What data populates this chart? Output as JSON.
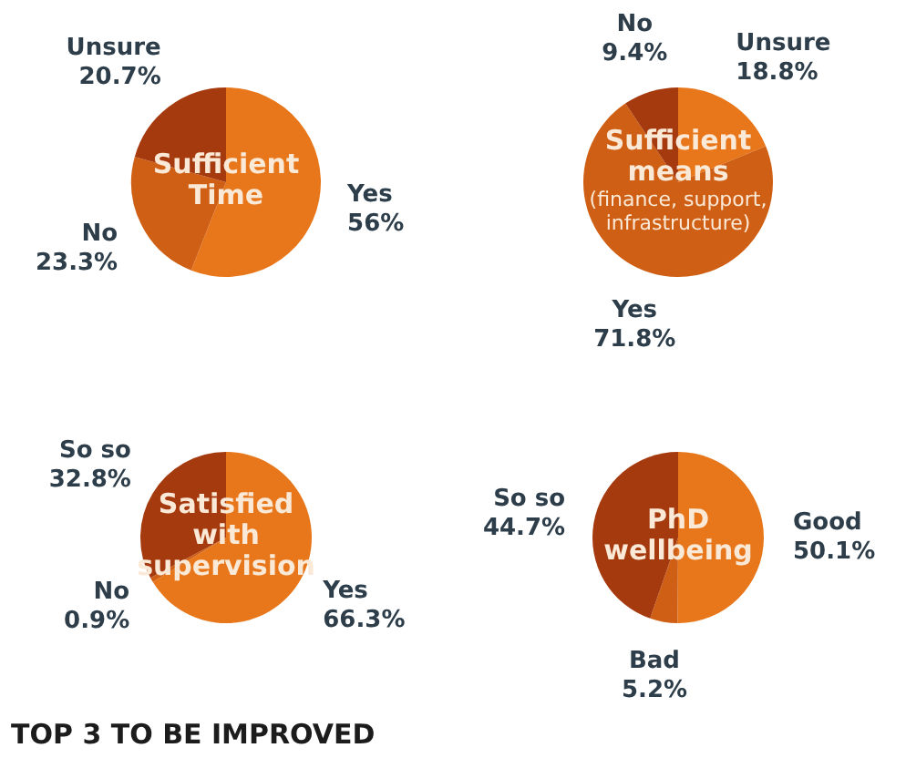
{
  "chart_data": [
    {
      "type": "pie",
      "title": "Sufficient Time",
      "categories": [
        "Yes",
        "No",
        "Unsure"
      ],
      "values": [
        56,
        23.3,
        20.7
      ],
      "value_labels": [
        "56%",
        "23.3%",
        "20.7%"
      ],
      "colors": [
        "#e8761a",
        "#cf5f14",
        "#a63a0f"
      ]
    },
    {
      "type": "pie",
      "title": "Sufficient means",
      "subtitle": "(finance, support, infrastructure)",
      "categories": [
        "Unsure",
        "Yes",
        "No"
      ],
      "values": [
        18.8,
        71.8,
        9.4
      ],
      "value_labels": [
        "18.8%",
        "71.8%",
        "9.4%"
      ],
      "colors": [
        "#e8761a",
        "#cf5f14",
        "#a63a0f"
      ]
    },
    {
      "type": "pie",
      "title": "Satisfied with supervision",
      "categories": [
        "Yes",
        "No",
        "So so"
      ],
      "values": [
        66.3,
        0.9,
        32.8
      ],
      "value_labels": [
        "66.3%",
        "0.9%",
        "32.8%"
      ],
      "colors": [
        "#e8761a",
        "#cf5f14",
        "#a63a0f"
      ],
      "annotations": [
        "TOP 3 TO BE IMPROVED"
      ]
    },
    {
      "type": "pie",
      "title": "PhD wellbeing",
      "categories": [
        "Good",
        "Bad",
        "So so"
      ],
      "values": [
        50.1,
        5.2,
        44.7
      ],
      "value_labels": [
        "50.1%",
        "5.2%",
        "44.7%"
      ],
      "colors": [
        "#e8761a",
        "#cf5f14",
        "#a63a0f"
      ]
    }
  ]
}
